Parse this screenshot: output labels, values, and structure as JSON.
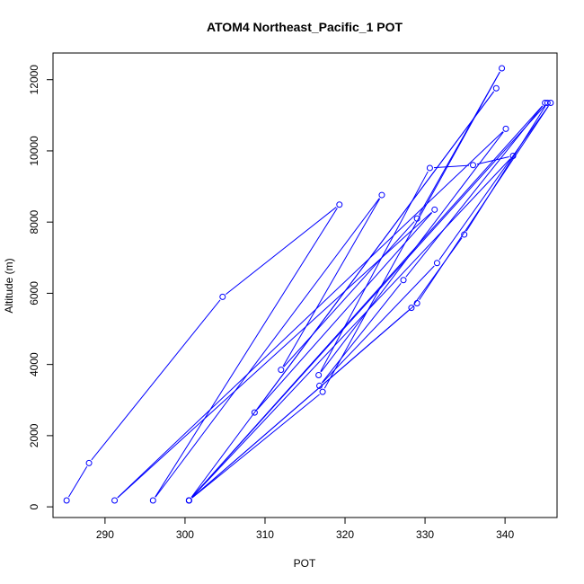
{
  "chart_data": {
    "type": "scatter",
    "title": "ATOM4 Northeast_Pacific_1 POT",
    "xlabel": "POT",
    "ylabel": "Altitude (m)",
    "xlim": [
      283.5,
      346.5
    ],
    "ylim": [
      -300,
      12750
    ],
    "xticks": [
      290,
      300,
      310,
      320,
      330,
      340
    ],
    "xtick_labels": [
      "290",
      "300",
      "310",
      "320",
      "330",
      "340"
    ],
    "yticks": [
      0,
      2000,
      4000,
      6000,
      8000,
      10000,
      12000
    ],
    "ytick_labels": [
      "0",
      "2000",
      "4000",
      "6000",
      "8000",
      "10000",
      "12000"
    ],
    "grid": false,
    "series": [
      {
        "color": "#0000ff",
        "marker": "open-circle",
        "line": true,
        "points": [
          [
            285.2,
            180
          ],
          [
            288.0,
            1230
          ],
          [
            304.7,
            5900
          ],
          [
            319.3,
            8490
          ],
          [
            296.0,
            180
          ],
          [
            324.6,
            8760
          ],
          [
            312.0,
            3850
          ],
          [
            329.0,
            8100
          ],
          [
            339.6,
            12320
          ],
          [
            317.2,
            3230
          ],
          [
            300.5,
            180
          ],
          [
            338.9,
            11760
          ],
          [
            308.7,
            2650
          ],
          [
            331.2,
            8350
          ],
          [
            291.2,
            180
          ],
          [
            340.1,
            10620
          ],
          [
            316.7,
            3700
          ],
          [
            330.6,
            9520
          ],
          [
            336.0,
            9600
          ],
          [
            341.0,
            9860
          ],
          [
            300.5,
            180
          ],
          [
            345.0,
            11350
          ],
          [
            327.3,
            6370
          ],
          [
            316.8,
            3400
          ],
          [
            331.5,
            6850
          ],
          [
            345.7,
            11350
          ],
          [
            329.0,
            5720
          ],
          [
            300.5,
            180
          ],
          [
            345.3,
            11350
          ],
          [
            334.9,
            7650
          ],
          [
            328.3,
            5590
          ],
          [
            300.5,
            180
          ]
        ]
      }
    ]
  }
}
